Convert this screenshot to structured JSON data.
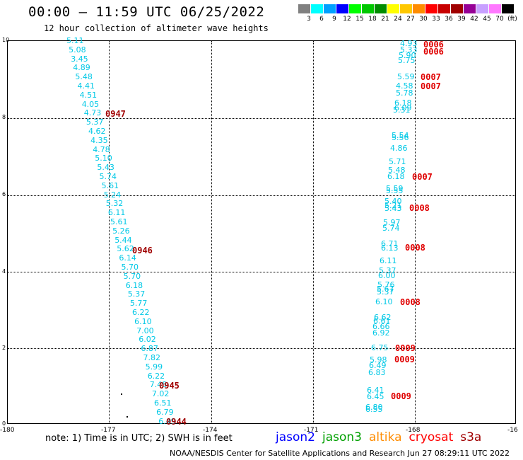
{
  "title": "00:00 – 11:59 UTC 06/25/2022",
  "subtitle": "12 hour collection of altimeter wave heights",
  "colorbar": {
    "colors": [
      "#808080",
      "#00ffff",
      "#00a0ff",
      "#0000ff",
      "#00ff00",
      "#00c800",
      "#008c00",
      "#ffff00",
      "#ffc800",
      "#ff8c00",
      "#ff0000",
      "#c80000",
      "#a00000",
      "#960096",
      "#c8a0ff",
      "#ff78ff",
      "#000000"
    ],
    "labels": [
      "3",
      "6",
      "9",
      "12",
      "15",
      "18",
      "21",
      "24",
      "27",
      "30",
      "33",
      "36",
      "39",
      "42",
      "45",
      "70",
      "(ft)"
    ]
  },
  "axes": {
    "y_ticks": [
      "0",
      "2",
      "4",
      "6",
      "8",
      "10"
    ],
    "x_ticks": [
      "-180",
      "-177",
      "-174",
      "-171",
      "-168",
      "-16"
    ]
  },
  "left_track": {
    "color": "#00c8e6",
    "values": [
      "5.11",
      "5.08",
      "3.45",
      "4.89",
      "5.48",
      "4.41",
      "4.51",
      "4.05",
      "4.73",
      "5.37",
      "4.62",
      "4.35",
      "4.78",
      "5.10",
      "5.43",
      "5.74",
      "5.61",
      "5.24",
      "5.32",
      "6.11",
      "5.61",
      "5.26",
      "5.44",
      "5.62",
      "6.14",
      "5.70",
      "5.70",
      "6.18",
      "5.37",
      "5.77",
      "6.22",
      "6.10",
      "7.00",
      "6.02",
      "6.87",
      "7.82",
      "5.99",
      "6.22",
      "7.48",
      "7.02",
      "6.51",
      "6.79",
      "6.49"
    ],
    "times": [
      "0947",
      "0946",
      "0945",
      "0944"
    ]
  },
  "right_track": {
    "color": "#00c8e6",
    "values": [
      "4.93",
      "5.33",
      "5.90",
      "5.75",
      "5.59",
      "4.58",
      "5.78",
      "6.18",
      "6.09",
      "5.31",
      "5.54",
      "5.56",
      "4.86",
      "5.71",
      "5.48",
      "6.18",
      "5.59",
      "5.55",
      "5.40",
      "5.21",
      "5.43",
      "5.97",
      "5.74",
      "6.71",
      "6.13",
      "6.11",
      "5.37",
      "6.00",
      "5.76",
      "5.67",
      "5.37",
      "6.10",
      "6.62",
      "6.61",
      "6.66",
      "6.92",
      "6.75",
      "5.98",
      "6.49",
      "6.83",
      "6.41",
      "6.45",
      "6.80",
      "6.55"
    ],
    "times": [
      "0006",
      "0006",
      "0007",
      "0007",
      "0007",
      "0008",
      "0008",
      "0008",
      "0009",
      "0009",
      "0009"
    ]
  },
  "note": "note: 1) Time is in UTC; 2) SWH is in feet",
  "legend": [
    {
      "label": "jason2",
      "color": "#0000ff"
    },
    {
      "label": "jason3",
      "color": "#00a000"
    },
    {
      "label": "altika",
      "color": "#ff8c00"
    },
    {
      "label": "cryosat",
      "color": "#ff0000"
    },
    {
      "label": "s3a",
      "color": "#a00000"
    }
  ],
  "credit": "NOAA/NESDIS Center for Satellite Applications and Research    Jun 27 08:29:11 UTC 2022"
}
